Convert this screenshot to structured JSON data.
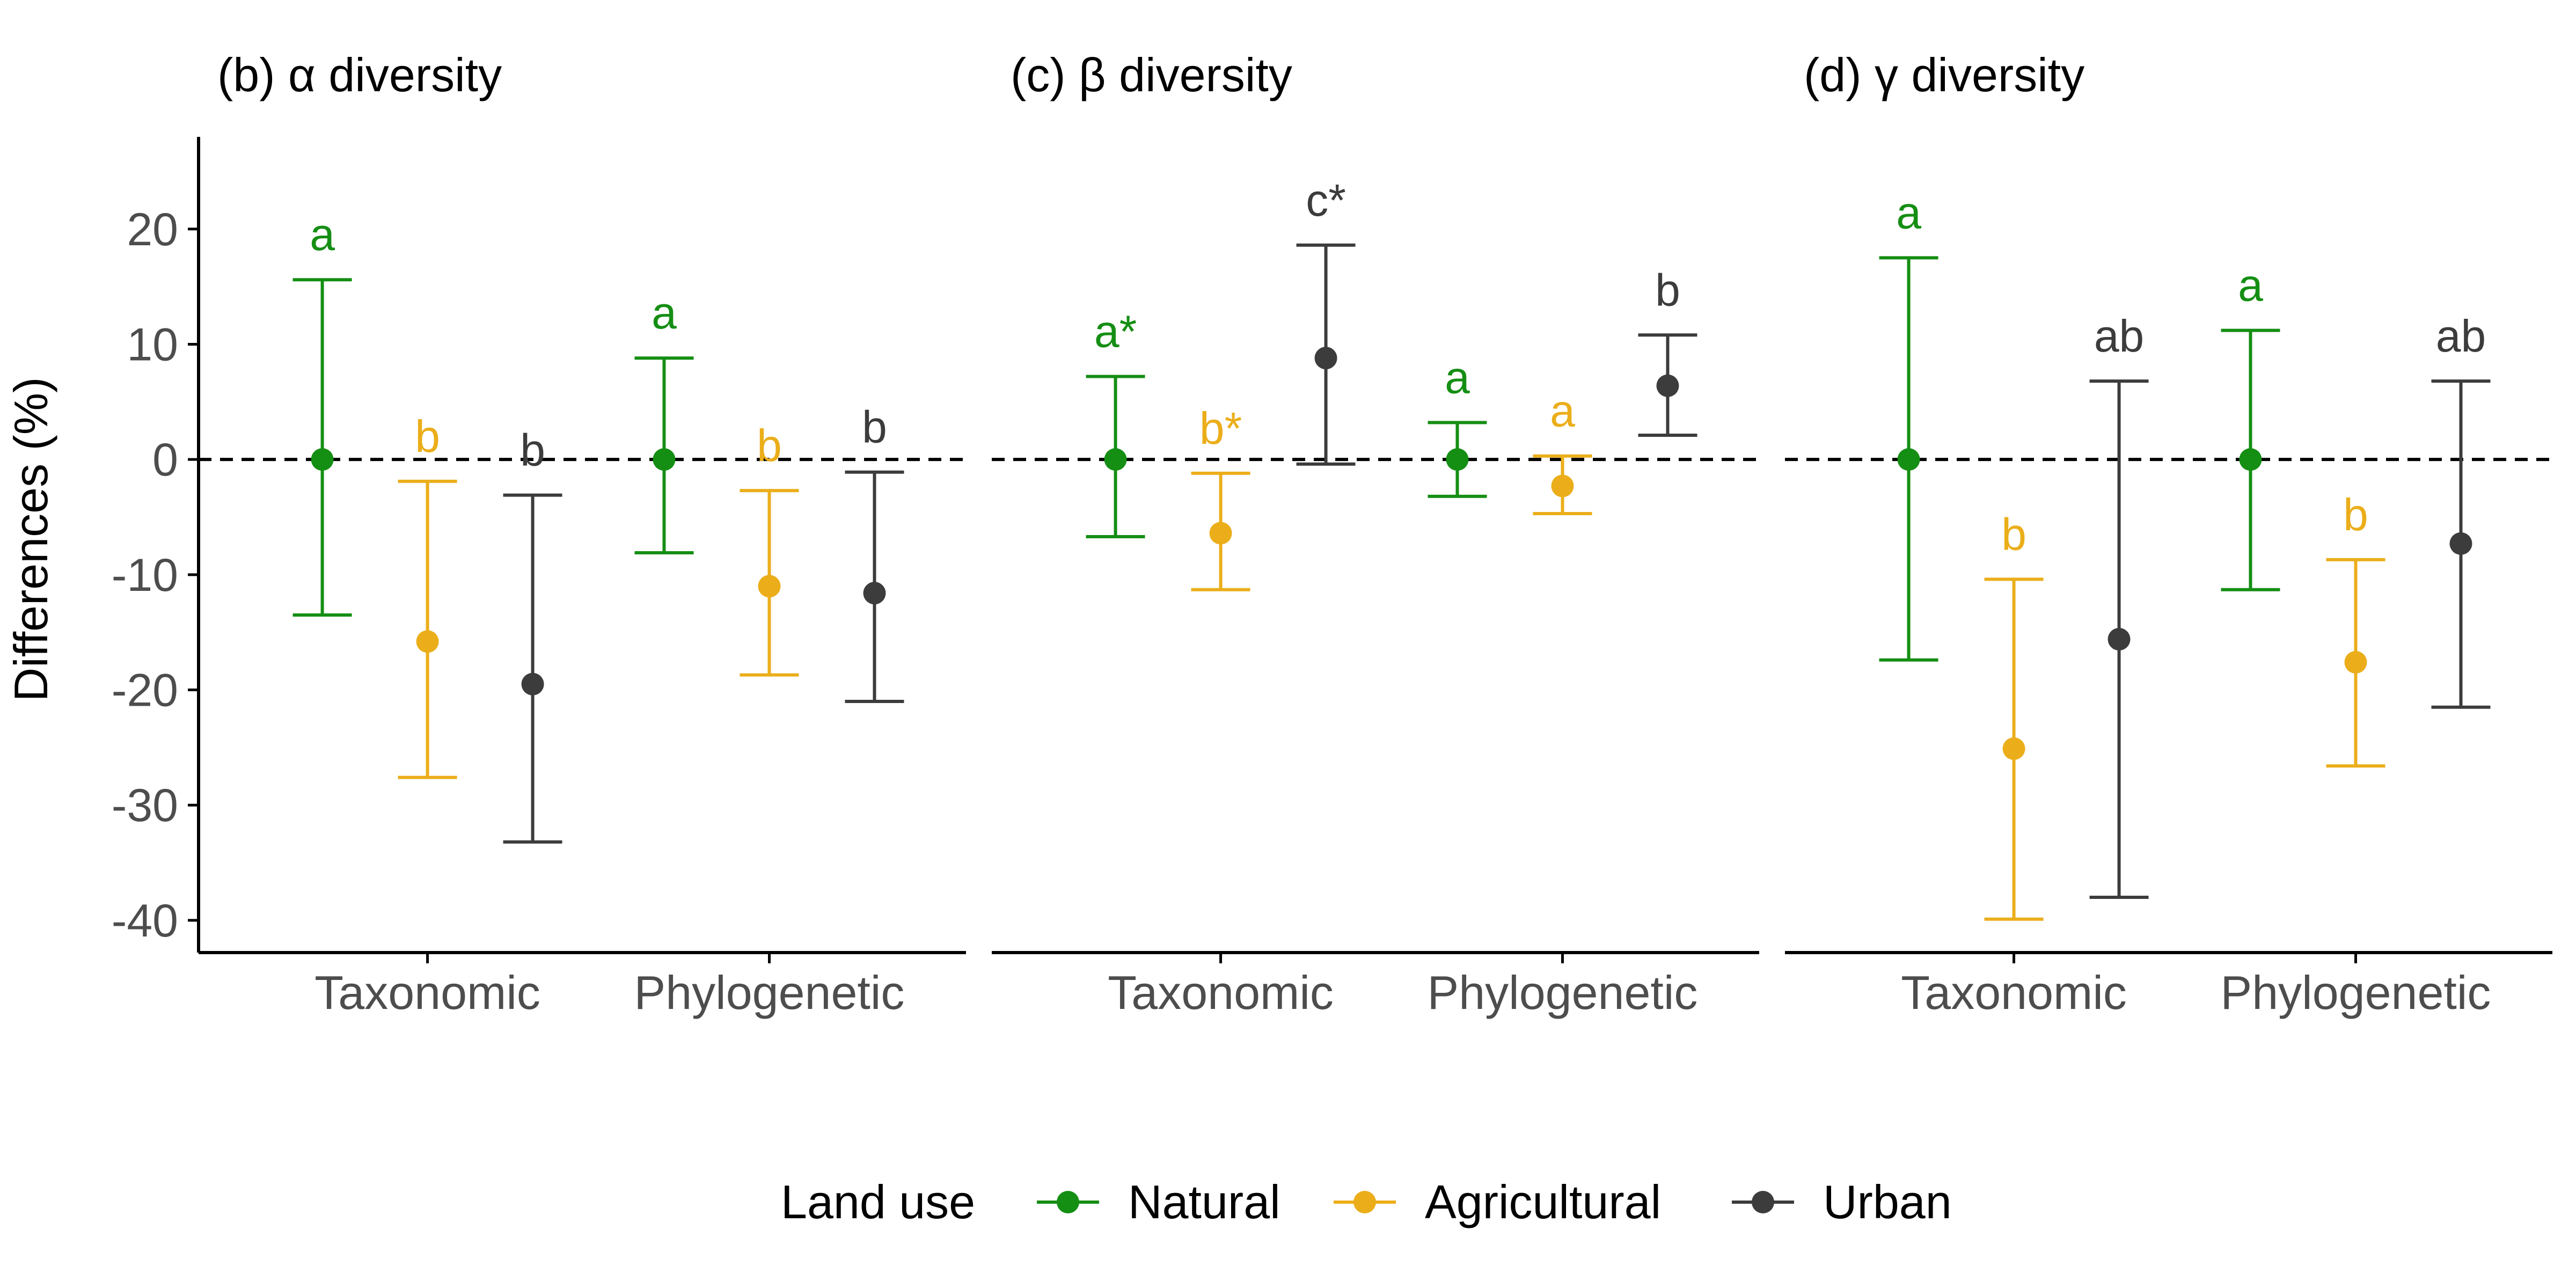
{
  "chart_data": {
    "type": "errorbar",
    "ylabel": "Differences (%)",
    "yticks": [
      20,
      10,
      0,
      -10,
      -20,
      -30,
      -40
    ],
    "ylim": [
      -42.8,
      28
    ],
    "reference_line": 0,
    "categories": [
      "Taxonomic",
      "Phylogenetic"
    ],
    "colors": {
      "Natural": "#158E14",
      "Agricultural": "#EBAE1A",
      "Urban": "#3C3C3C",
      "axis": "#000000",
      "tick_label": "#4D4D4D"
    },
    "legend": {
      "title": "Land use",
      "entries": [
        "Natural",
        "Agricultural",
        "Urban"
      ],
      "position": "bottom"
    },
    "panels": [
      {
        "title": "(b) α diversity",
        "groups": [
          {
            "category": "Taxonomic",
            "points": [
              {
                "series": "Natural",
                "mean": 0,
                "lower": -13.5,
                "upper": 15.6,
                "label": "a"
              },
              {
                "series": "Agricultural",
                "mean": -15.8,
                "lower": -27.6,
                "upper": -1.9,
                "label": "b"
              },
              {
                "series": "Urban",
                "mean": -19.5,
                "lower": -33.2,
                "upper": -3.1,
                "label": "b"
              }
            ]
          },
          {
            "category": "Phylogenetic",
            "points": [
              {
                "series": "Natural",
                "mean": 0,
                "lower": -8.1,
                "upper": 8.8,
                "label": "a"
              },
              {
                "series": "Agricultural",
                "mean": -11.0,
                "lower": -18.7,
                "upper": -2.7,
                "label": "b"
              },
              {
                "series": "Urban",
                "mean": -11.6,
                "lower": -21.0,
                "upper": -1.1,
                "label": "b"
              }
            ]
          }
        ]
      },
      {
        "title": "(c) β diversity",
        "groups": [
          {
            "category": "Taxonomic",
            "points": [
              {
                "series": "Natural",
                "mean": 0,
                "lower": -6.7,
                "upper": 7.2,
                "label": "a*"
              },
              {
                "series": "Agricultural",
                "mean": -6.4,
                "lower": -11.3,
                "upper": -1.2,
                "label": "b*"
              },
              {
                "series": "Urban",
                "mean": 8.8,
                "lower": -0.4,
                "upper": 18.6,
                "label": "c*"
              }
            ]
          },
          {
            "category": "Phylogenetic",
            "points": [
              {
                "series": "Natural",
                "mean": 0,
                "lower": -3.2,
                "upper": 3.2,
                "label": "a"
              },
              {
                "series": "Agricultural",
                "mean": -2.3,
                "lower": -4.7,
                "upper": 0.3,
                "label": "a"
              },
              {
                "series": "Urban",
                "mean": 6.4,
                "lower": 2.1,
                "upper": 10.8,
                "label": "b"
              }
            ]
          }
        ]
      },
      {
        "title": "(d) γ diversity",
        "groups": [
          {
            "category": "Taxonomic",
            "points": [
              {
                "series": "Natural",
                "mean": 0,
                "lower": -17.4,
                "upper": 17.5,
                "label": "a"
              },
              {
                "series": "Agricultural",
                "mean": -25.1,
                "lower": -39.9,
                "upper": -10.4,
                "label": "b"
              },
              {
                "series": "Urban",
                "mean": -15.6,
                "lower": -38.0,
                "upper": 6.8,
                "label": "ab"
              }
            ]
          },
          {
            "category": "Phylogenetic",
            "points": [
              {
                "series": "Natural",
                "mean": 0,
                "lower": -11.3,
                "upper": 11.2,
                "label": "a"
              },
              {
                "series": "Agricultural",
                "mean": -17.6,
                "lower": -26.6,
                "upper": -8.7,
                "label": "b"
              },
              {
                "series": "Urban",
                "mean": -7.3,
                "lower": -21.5,
                "upper": 6.8,
                "label": "ab"
              }
            ]
          }
        ]
      }
    ]
  }
}
